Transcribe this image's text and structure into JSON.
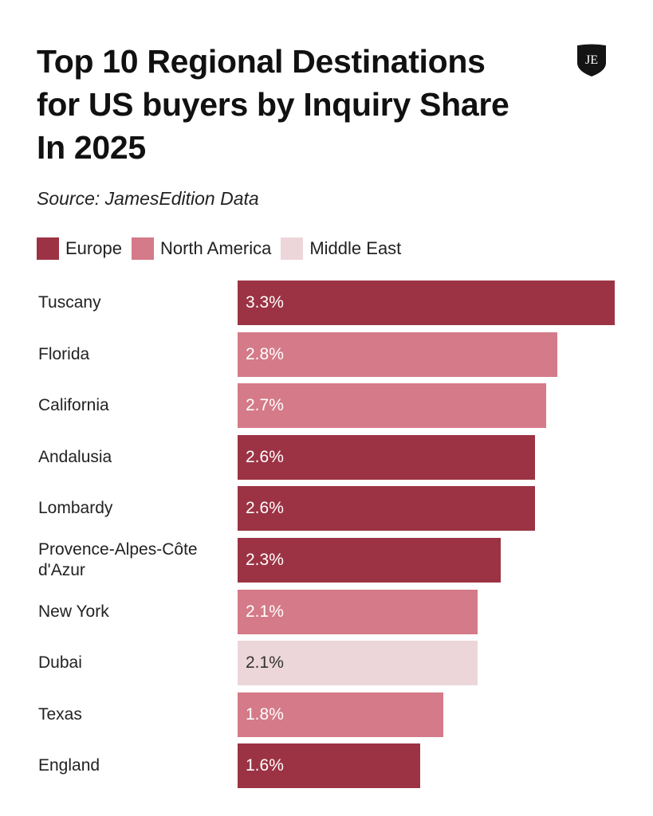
{
  "header": {
    "title_lines": [
      "Top 10 Regional Destinations",
      "for US buyers by Inquiry Share",
      "In 2025"
    ],
    "source": "Source: JamesEdition Data",
    "logo_text": "JE",
    "logo_icon": "je-shield-logo-icon"
  },
  "colors": {
    "Europe": "#9c3344",
    "North America": "#d47a88",
    "Middle East": "#ecd6da",
    "label_light": "#ffffff",
    "label_dark": "#333333"
  },
  "chart_data": {
    "type": "bar",
    "orientation": "horizontal",
    "title": "Top 10 Regional Destinations for US buyers by Inquiry Share In 2025",
    "subtitle": "Source: JamesEdition Data",
    "xlabel": "",
    "ylabel": "",
    "xlim": [
      0,
      3.3
    ],
    "grid": false,
    "legend": {
      "placement": "top-left",
      "entries": [
        "Europe",
        "North America",
        "Middle East"
      ]
    },
    "categories": [
      "Tuscany",
      "Florida",
      "California",
      "Andalusia",
      "Lombardy",
      "Provence-Alpes-Côte d'Azur",
      "New York",
      "Dubai",
      "Texas",
      "England"
    ],
    "category_label_lines": [
      [
        "Tuscany"
      ],
      [
        "Florida"
      ],
      [
        "California"
      ],
      [
        "Andalusia"
      ],
      [
        "Lombardy"
      ],
      [
        "Provence-Alpes-Côte",
        "d'Azur"
      ],
      [
        "New York"
      ],
      [
        "Dubai"
      ],
      [
        "Texas"
      ],
      [
        "England"
      ]
    ],
    "values": [
      3.3,
      2.8,
      2.7,
      2.6,
      2.6,
      2.3,
      2.1,
      2.1,
      1.8,
      1.6
    ],
    "value_labels": [
      "3.3%",
      "2.8%",
      "2.7%",
      "2.6%",
      "2.6%",
      "2.3%",
      "2.1%",
      "2.1%",
      "1.8%",
      "1.6%"
    ],
    "region": [
      "Europe",
      "North America",
      "North America",
      "Europe",
      "Europe",
      "Europe",
      "North America",
      "Middle East",
      "North America",
      "Europe"
    ],
    "unit": "%"
  }
}
